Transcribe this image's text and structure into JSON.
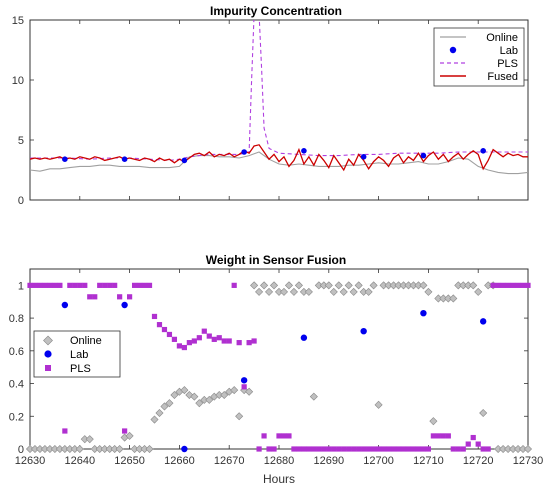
{
  "chart_data": [
    {
      "type": "line",
      "title": "Impurity Concentration",
      "xlabel": "",
      "ylabel": "",
      "xlim": [
        12630,
        12730
      ],
      "ylim": [
        0,
        15
      ],
      "yticks": [
        0,
        5,
        10,
        15
      ],
      "grid": false,
      "legend_position": "top-right",
      "series": [
        {
          "name": "Online",
          "style": "solid",
          "color": "#a0a0a0",
          "x": [
            12630,
            12632,
            12634,
            12636,
            12638,
            12640,
            12642,
            12644,
            12646,
            12648,
            12650,
            12652,
            12654,
            12656,
            12658,
            12660,
            12662,
            12664,
            12666,
            12668,
            12670,
            12672,
            12674,
            12676,
            12678,
            12680,
            12682,
            12684,
            12686,
            12688,
            12690,
            12692,
            12694,
            12696,
            12698,
            12700,
            12702,
            12704,
            12706,
            12708,
            12710,
            12712,
            12714,
            12716,
            12718,
            12720,
            12722,
            12724,
            12726,
            12728,
            12730
          ],
          "y": [
            2.5,
            2.4,
            2.6,
            2.6,
            2.7,
            2.8,
            2.8,
            2.9,
            2.9,
            2.8,
            2.8,
            2.8,
            2.7,
            2.7,
            2.7,
            2.8,
            3.6,
            3.7,
            3.7,
            3.6,
            3.6,
            3.5,
            3.7,
            4.0,
            3.4,
            3.0,
            2.9,
            3.0,
            2.9,
            2.8,
            2.8,
            2.8,
            2.9,
            2.9,
            3.0,
            3.1,
            3.0,
            3.0,
            3.1,
            3.2,
            3.0,
            3.0,
            3.2,
            3.5,
            3.4,
            2.8,
            2.5,
            2.3,
            2.2,
            2.2,
            2.3
          ]
        },
        {
          "name": "Lab",
          "style": "marker",
          "color": "#0000ee",
          "x": [
            12637,
            12649,
            12661,
            12673,
            12685,
            12697,
            12709,
            12721
          ],
          "y": [
            3.4,
            3.4,
            3.3,
            4.0,
            4.1,
            3.6,
            3.7,
            4.1
          ]
        },
        {
          "name": "PLS",
          "style": "dashed",
          "color": "#b040e0",
          "x": [
            12630,
            12634,
            12638,
            12642,
            12646,
            12650,
            12654,
            12658,
            12660,
            12662,
            12664,
            12666,
            12668,
            12670,
            12672,
            12673,
            12674,
            12674.5,
            12675,
            12676,
            12676.5,
            12677,
            12678,
            12680,
            12684,
            12688,
            12692,
            12696,
            12700,
            12704,
            12708,
            12712,
            12716,
            12720,
            12724,
            12730
          ],
          "y": [
            3.5,
            3.5,
            3.5,
            3.4,
            3.5,
            3.5,
            3.4,
            3.3,
            3.4,
            3.6,
            3.7,
            3.8,
            3.8,
            3.8,
            3.8,
            3.9,
            4.0,
            10.0,
            15.5,
            15.5,
            11.0,
            6.0,
            4.3,
            3.9,
            3.8,
            3.7,
            3.7,
            3.8,
            3.8,
            3.9,
            3.9,
            3.9,
            4.0,
            4.0,
            4.0,
            4.0
          ]
        },
        {
          "name": "Fused",
          "style": "solid",
          "color": "#cc0000",
          "x": [
            12630,
            12631,
            12632,
            12633,
            12634,
            12635,
            12636,
            12637,
            12638,
            12639,
            12640,
            12641,
            12642,
            12643,
            12644,
            12645,
            12646,
            12647,
            12648,
            12649,
            12650,
            12651,
            12652,
            12653,
            12654,
            12655,
            12656,
            12657,
            12658,
            12659,
            12660,
            12661,
            12662,
            12663,
            12664,
            12665,
            12666,
            12667,
            12668,
            12669,
            12670,
            12671,
            12672,
            12673,
            12674,
            12675,
            12676,
            12677,
            12678,
            12679,
            12680,
            12681,
            12682,
            12683,
            12684,
            12685,
            12686,
            12687,
            12688,
            12689,
            12690,
            12691,
            12692,
            12693,
            12694,
            12695,
            12696,
            12697,
            12698,
            12699,
            12700,
            12701,
            12702,
            12703,
            12704,
            12705,
            12706,
            12707,
            12708,
            12709,
            12710,
            12711,
            12712,
            12713,
            12714,
            12715,
            12716,
            12717,
            12718,
            12719,
            12720,
            12721,
            12722,
            12723,
            12724,
            12725,
            12726,
            12727,
            12728,
            12729,
            12730
          ],
          "y": [
            3.4,
            3.5,
            3.4,
            3.5,
            3.4,
            3.5,
            3.6,
            3.4,
            3.5,
            3.4,
            3.6,
            3.5,
            3.4,
            3.6,
            3.5,
            3.3,
            3.4,
            3.5,
            3.6,
            3.4,
            3.5,
            3.4,
            3.3,
            3.5,
            3.4,
            3.2,
            3.5,
            3.3,
            3.4,
            3.1,
            3.4,
            3.2,
            3.5,
            3.8,
            3.9,
            3.7,
            4.0,
            3.6,
            3.8,
            3.7,
            3.9,
            3.6,
            3.8,
            4.1,
            3.9,
            4.5,
            4.6,
            4.0,
            3.4,
            3.8,
            3.2,
            3.6,
            2.8,
            3.3,
            4.2,
            3.0,
            3.6,
            2.9,
            3.8,
            3.3,
            2.7,
            3.7,
            3.1,
            2.5,
            3.4,
            2.9,
            3.8,
            3.3,
            2.6,
            3.2,
            3.6,
            3.3,
            2.8,
            3.5,
            3.8,
            3.1,
            3.6,
            3.3,
            3.9,
            3.2,
            3.7,
            4.0,
            3.4,
            3.8,
            3.2,
            3.6,
            3.9,
            3.4,
            3.8,
            4.1,
            3.8,
            2.6,
            3.3,
            4.2,
            3.9,
            3.6,
            3.9,
            3.7,
            3.8,
            3.6,
            3.6
          ]
        }
      ]
    },
    {
      "type": "scatter",
      "title": "Weight in Sensor Fusion",
      "xlabel": "Hours",
      "ylabel": "",
      "xlim": [
        12630,
        12730
      ],
      "ylim": [
        0,
        1.1
      ],
      "xticks": [
        12630,
        12640,
        12650,
        12660,
        12670,
        12680,
        12690,
        12700,
        12710,
        12720,
        12730
      ],
      "yticks": [
        0,
        0.2,
        0.4,
        0.6,
        0.8,
        1
      ],
      "ytick_labels": [
        "0",
        "0.2",
        "0.4",
        "0.6",
        "0.8",
        "1"
      ],
      "grid": false,
      "legend_position": "middle-left",
      "series": [
        {
          "name": "Online",
          "marker": "diamond",
          "color": "#c0c0c0",
          "x": [
            12630,
            12631,
            12632,
            12633,
            12634,
            12635,
            12636,
            12637,
            12638,
            12639,
            12640,
            12641,
            12642,
            12643,
            12644,
            12645,
            12646,
            12647,
            12648,
            12649,
            12650,
            12651,
            12652,
            12653,
            12654,
            12655,
            12656,
            12657,
            12658,
            12659,
            12660,
            12661,
            12662,
            12663,
            12664,
            12665,
            12666,
            12667,
            12668,
            12669,
            12670,
            12671,
            12672,
            12673,
            12674,
            12675,
            12676,
            12677,
            12678,
            12679,
            12680,
            12681,
            12682,
            12683,
            12684,
            12685,
            12686,
            12687,
            12688,
            12689,
            12690,
            12691,
            12692,
            12693,
            12694,
            12695,
            12696,
            12697,
            12698,
            12699,
            12700,
            12701,
            12702,
            12703,
            12704,
            12705,
            12706,
            12707,
            12708,
            12709,
            12710,
            12711,
            12712,
            12713,
            12714,
            12715,
            12716,
            12717,
            12718,
            12719,
            12720,
            12721,
            12722,
            12723,
            12724,
            12725,
            12726,
            12727,
            12728,
            12729,
            12730
          ],
          "y": [
            0,
            0,
            0,
            0,
            0,
            0,
            0,
            0,
            0,
            0,
            0,
            0.06,
            0.06,
            0,
            0,
            0,
            0,
            0,
            0,
            0.07,
            0.08,
            0,
            0,
            0,
            0,
            0.18,
            0.22,
            0.26,
            0.28,
            0.33,
            0.35,
            0.36,
            0.33,
            0.32,
            0.28,
            0.3,
            0.3,
            0.32,
            0.33,
            0.33,
            0.35,
            0.36,
            0.2,
            0.36,
            0.35,
            1.0,
            0.96,
            1.0,
            0.96,
            1.0,
            0.96,
            0.96,
            1.0,
            0.96,
            1.0,
            0.96,
            0.96,
            0.32,
            1.0,
            1.0,
            1.0,
            0.96,
            1.0,
            0.96,
            1.0,
            0.96,
            1.0,
            0.96,
            0.96,
            1.0,
            0.27,
            1.0,
            1.0,
            1.0,
            1.0,
            1.0,
            1.0,
            1.0,
            1.0,
            1.0,
            0.96,
            0.17,
            0.92,
            0.92,
            0.92,
            0.92,
            1.0,
            1.0,
            1.0,
            1.0,
            0.96,
            0.22,
            1.0,
            1.0,
            0,
            0,
            0,
            0,
            0,
            0,
            0
          ]
        },
        {
          "name": "Lab",
          "marker": "circle",
          "color": "#0000ee",
          "x": [
            12637,
            12649,
            12661,
            12673,
            12685,
            12697,
            12709,
            12721
          ],
          "y": [
            0.88,
            0.88,
            0,
            0.42,
            0.68,
            0.72,
            0.83,
            0.78
          ]
        },
        {
          "name": "PLS",
          "marker": "square",
          "color": "#b030d0",
          "x": [
            12630,
            12631,
            12632,
            12633,
            12634,
            12635,
            12636,
            12637,
            12638,
            12639,
            12640,
            12641,
            12642,
            12643,
            12644,
            12645,
            12646,
            12647,
            12648,
            12649,
            12650,
            12651,
            12652,
            12653,
            12654,
            12655,
            12656,
            12657,
            12658,
            12659,
            12660,
            12661,
            12662,
            12663,
            12664,
            12665,
            12666,
            12667,
            12668,
            12669,
            12670,
            12671,
            12672,
            12673,
            12674,
            12675,
            12676,
            12677,
            12678,
            12679,
            12680,
            12681,
            12682,
            12683,
            12684,
            12685,
            12686,
            12687,
            12688,
            12689,
            12690,
            12691,
            12692,
            12693,
            12694,
            12695,
            12696,
            12697,
            12698,
            12699,
            12700,
            12701,
            12702,
            12703,
            12704,
            12705,
            12706,
            12707,
            12708,
            12709,
            12710,
            12711,
            12712,
            12713,
            12714,
            12715,
            12716,
            12717,
            12718,
            12719,
            12720,
            12721,
            12722,
            12723,
            12724,
            12725,
            12726,
            12727,
            12728,
            12729,
            12730
          ],
          "y": [
            1,
            1,
            1,
            1,
            1,
            1,
            1,
            0.11,
            1,
            1,
            1,
            1,
            0.93,
            0.93,
            1,
            1,
            1,
            1,
            0.93,
            0.11,
            0.93,
            1,
            1,
            1,
            1,
            0.81,
            0.76,
            0.73,
            0.7,
            0.67,
            0.63,
            0.62,
            0.65,
            0.66,
            0.68,
            0.72,
            0.69,
            0.67,
            0.68,
            0.66,
            0.66,
            1.0,
            0.65,
            0.38,
            0.65,
            0.66,
            0,
            0.08,
            0,
            0,
            0.08,
            0.08,
            0.08,
            0,
            0,
            0,
            0,
            0,
            0,
            0,
            0,
            0,
            0,
            0,
            0,
            0,
            0,
            0,
            0,
            0,
            0,
            0,
            0,
            0,
            0,
            0,
            0,
            0,
            0,
            0,
            0,
            0.08,
            0.08,
            0.08,
            0.08,
            0,
            0,
            0,
            0.03,
            0.07,
            0.03,
            0,
            0,
            1,
            1,
            1,
            1,
            1,
            1,
            1,
            1
          ]
        }
      ]
    }
  ]
}
